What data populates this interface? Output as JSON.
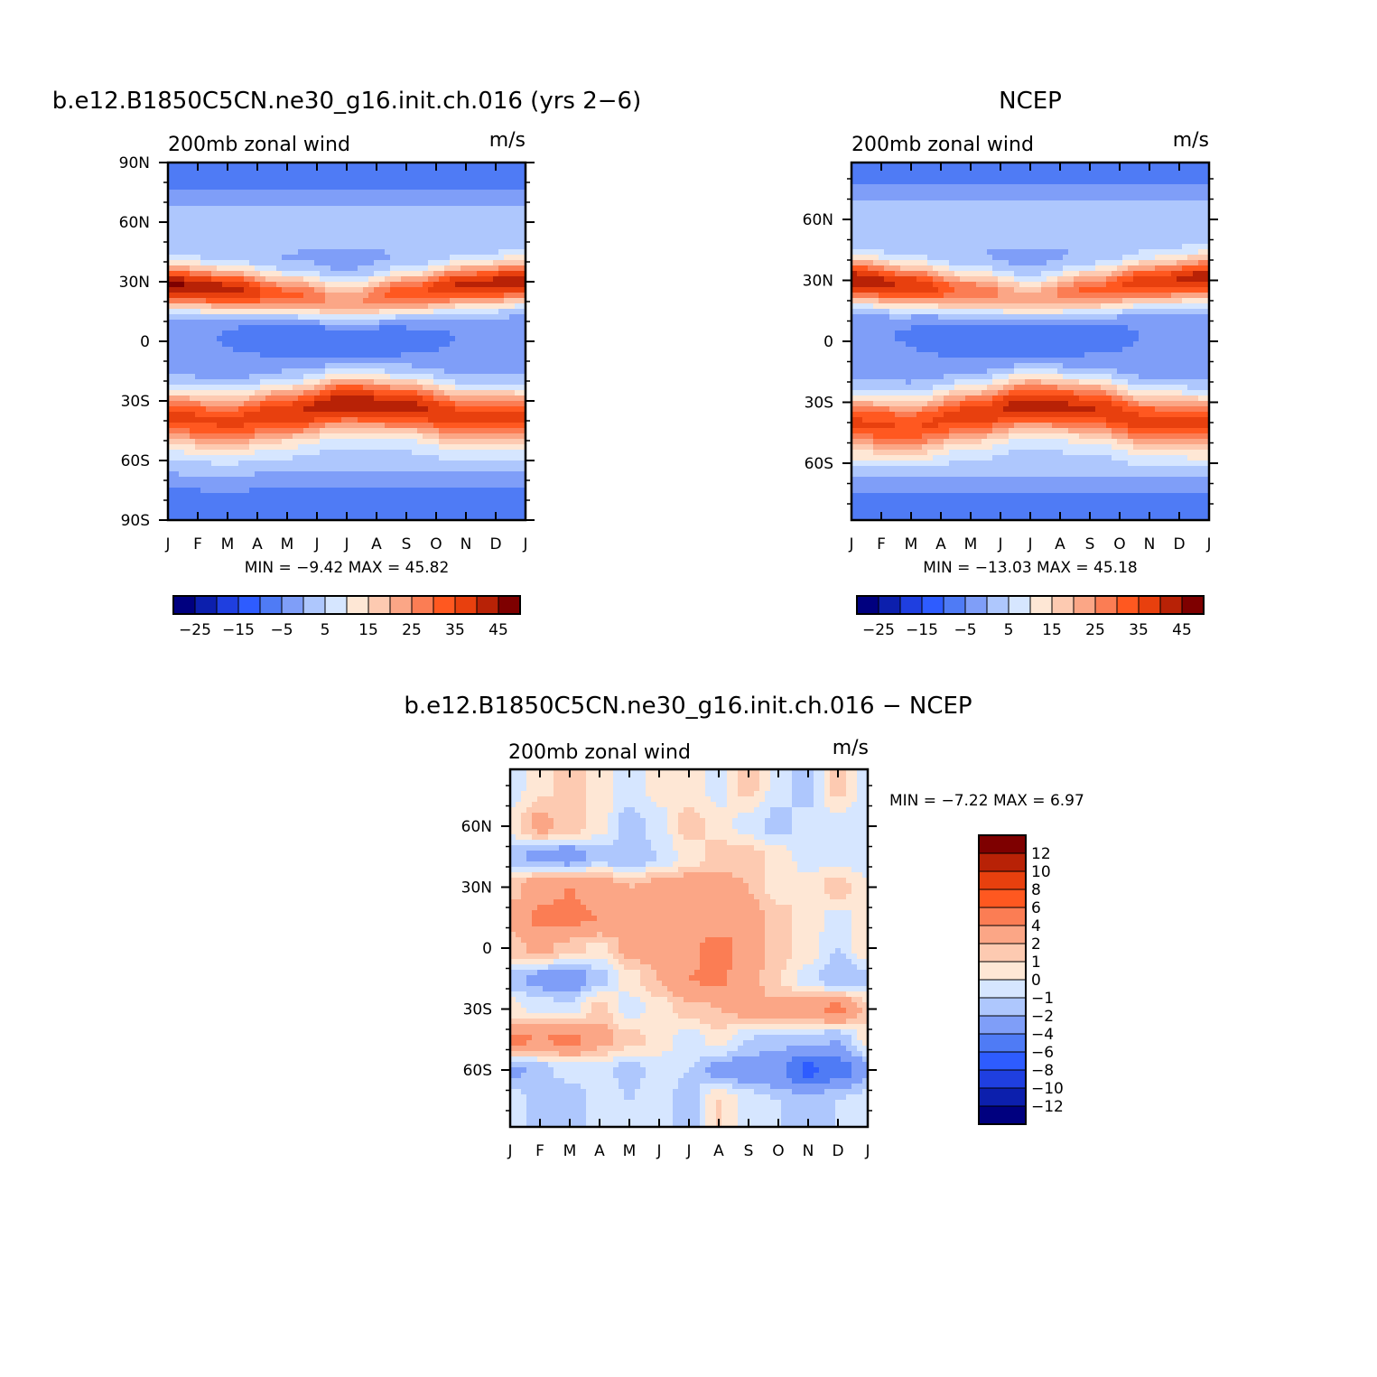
{
  "chart_data": [
    {
      "type": "heatmap",
      "title": "b.e12.B1850C5CN.ne30_g16.init.ch.016 (yrs 2−6)",
      "left_label": "200mb  zonal  wind",
      "right_label": "m/s",
      "x_ticks": [
        "J",
        "F",
        "M",
        "A",
        "M",
        "J",
        "J",
        "A",
        "S",
        "O",
        "N",
        "D",
        "J"
      ],
      "y_ticks": [
        "90N",
        "60N",
        "30N",
        "0",
        "30S",
        "60S",
        "90S"
      ],
      "ylim": [
        -90,
        90
      ],
      "stats_label": "MIN =   −9.42  MAX =    45.82",
      "min": -9.42,
      "max": 45.82,
      "colorbar": {
        "orientation": "horizontal",
        "labels": [
          "−25",
          "−15",
          "−5",
          "5",
          "15",
          "25",
          "35",
          "45"
        ],
        "levels": [
          -30,
          -25,
          -20,
          -15,
          -10,
          -5,
          0,
          5,
          10,
          15,
          20,
          25,
          30,
          35,
          40,
          45,
          50
        ]
      },
      "jets": {
        "nh": {
          "lat": [
            28,
            26,
            23,
            20,
            24,
            28,
            30
          ],
          "amp": [
            45.8,
            43,
            33,
            25,
            34,
            41,
            44
          ]
        },
        "sh": {
          "lat": [
            -38,
            -40,
            -36,
            -31,
            -33,
            -38,
            -38
          ],
          "amp": [
            36,
            35,
            39,
            44,
            41,
            37,
            36
          ]
        }
      }
    },
    {
      "type": "heatmap",
      "title": "NCEP",
      "left_label": "200mb  zonal  wind",
      "right_label": "m/s",
      "x_ticks": [
        "J",
        "F",
        "M",
        "A",
        "M",
        "J",
        "J",
        "A",
        "S",
        "O",
        "N",
        "D",
        "J"
      ],
      "y_ticks": [
        "60N",
        "30N",
        "0",
        "30S",
        "60S"
      ],
      "ylim": [
        -88,
        88
      ],
      "stats_label": "MIN =  −13.03  MAX =    45.18",
      "min": -13.03,
      "max": 45.18,
      "colorbar": {
        "orientation": "horizontal",
        "labels": [
          "−25",
          "−15",
          "−5",
          "5",
          "15",
          "25",
          "35",
          "45"
        ],
        "levels": [
          -30,
          -25,
          -20,
          -15,
          -10,
          -5,
          0,
          5,
          10,
          15,
          20,
          25,
          30,
          35,
          40,
          45,
          50
        ]
      },
      "jets": {
        "nh": {
          "lat": [
            30,
            27,
            24,
            21,
            25,
            29,
            31
          ],
          "amp": [
            44,
            40,
            30,
            23,
            31,
            38,
            43
          ]
        },
        "sh": {
          "lat": [
            -40,
            -41,
            -36,
            -31,
            -33,
            -39,
            -40
          ],
          "amp": [
            35,
            34,
            37,
            42,
            40,
            36,
            35
          ]
        }
      }
    },
    {
      "type": "heatmap",
      "title": "b.e12.B1850C5CN.ne30_g16.init.ch.016 − NCEP",
      "left_label": "200mb  zonal  wind",
      "right_label": "m/s",
      "x_ticks": [
        "J",
        "F",
        "M",
        "A",
        "M",
        "J",
        "J",
        "A",
        "S",
        "O",
        "N",
        "D",
        "J"
      ],
      "y_ticks": [
        "60N",
        "30N",
        "0",
        "30S",
        "60S"
      ],
      "ylim": [
        -88,
        88
      ],
      "stats_label": "MIN =   −7.22  MAX =     6.97",
      "min": -7.22,
      "max": 6.97,
      "colorbar": {
        "orientation": "vertical",
        "labels": [
          "12",
          "10",
          "8",
          "6",
          "4",
          "2",
          "1",
          "0",
          "−1",
          "−2",
          "−4",
          "−6",
          "−8",
          "−10",
          "−12"
        ],
        "levels": [
          -14,
          -12,
          -10,
          -8,
          -6,
          -4,
          -2,
          -1,
          0,
          1,
          2,
          4,
          6,
          8,
          10,
          12,
          14
        ]
      },
      "anomaly_grid": {
        "lat": [
          80,
          60,
          45,
          30,
          15,
          0,
          -15,
          -30,
          -45,
          -60,
          -75
        ],
        "month": [
          "J",
          "F",
          "M",
          "A",
          "M",
          "J",
          "J",
          "A",
          "S",
          "O",
          "N",
          "D",
          "J"
        ],
        "values": [
          [
            -0.5,
            0.5,
            1.5,
            0.5,
            -0.5,
            0.5,
            0.5,
            -0.5,
            1.5,
            -0.5,
            -1.5,
            1.5,
            -0.5
          ],
          [
            0.5,
            2.5,
            1.5,
            0.5,
            -1.5,
            -0.5,
            1.5,
            0.5,
            -0.5,
            -1.5,
            -0.5,
            -0.5,
            -1.0
          ],
          [
            -1.5,
            -2.5,
            -3.0,
            -1.5,
            -2.0,
            -1.0,
            0.5,
            1.5,
            1.5,
            0.5,
            -0.5,
            -0.5,
            -1.0
          ],
          [
            1.5,
            3.0,
            4.0,
            3.0,
            2.0,
            2.5,
            3.0,
            2.5,
            2.0,
            0.5,
            0.5,
            1.5,
            0.5
          ],
          [
            2.5,
            4.5,
            4.5,
            4.0,
            3.5,
            3.0,
            3.0,
            2.5,
            2.5,
            1.5,
            0.5,
            -0.5,
            0.5
          ],
          [
            1.5,
            2.5,
            1.5,
            0.5,
            2.5,
            3.0,
            3.5,
            5.0,
            3.0,
            1.5,
            0.5,
            -1.0,
            1.0
          ],
          [
            -1.5,
            -2.5,
            -3.0,
            -1.5,
            0.5,
            2.0,
            4.0,
            4.5,
            2.5,
            1.0,
            -0.5,
            -2.0,
            -1.5
          ],
          [
            0.5,
            -0.5,
            -0.5,
            1.5,
            -0.5,
            0.5,
            1.5,
            2.0,
            2.5,
            2.5,
            3.5,
            4.5,
            1.5
          ],
          [
            4.5,
            4.0,
            4.5,
            2.5,
            1.5,
            0.5,
            -0.5,
            0.5,
            -1.0,
            -1.5,
            -1.5,
            -2.0,
            0.5
          ],
          [
            -2.5,
            -1.5,
            -0.5,
            -0.5,
            -1.5,
            -0.5,
            -1.0,
            -2.5,
            -3.0,
            -3.5,
            -6.5,
            -5.0,
            -2.5
          ],
          [
            -0.5,
            -1.5,
            -2.0,
            -0.5,
            -1.0,
            -0.5,
            -1.5,
            1.0,
            -0.5,
            -1.0,
            -1.5,
            -1.0,
            -0.5
          ]
        ]
      }
    }
  ],
  "colors": {
    "diverging": [
      "#00007f",
      "#0c1fad",
      "#1f3fe0",
      "#2e5cff",
      "#4f7bf5",
      "#7f9ef8",
      "#aec7fd",
      "#d6e6ff",
      "#fee7d5",
      "#fdcab1",
      "#fba686",
      "#fb7d54",
      "#ff5820",
      "#e8400e",
      "#b82206",
      "#7e0000"
    ]
  }
}
